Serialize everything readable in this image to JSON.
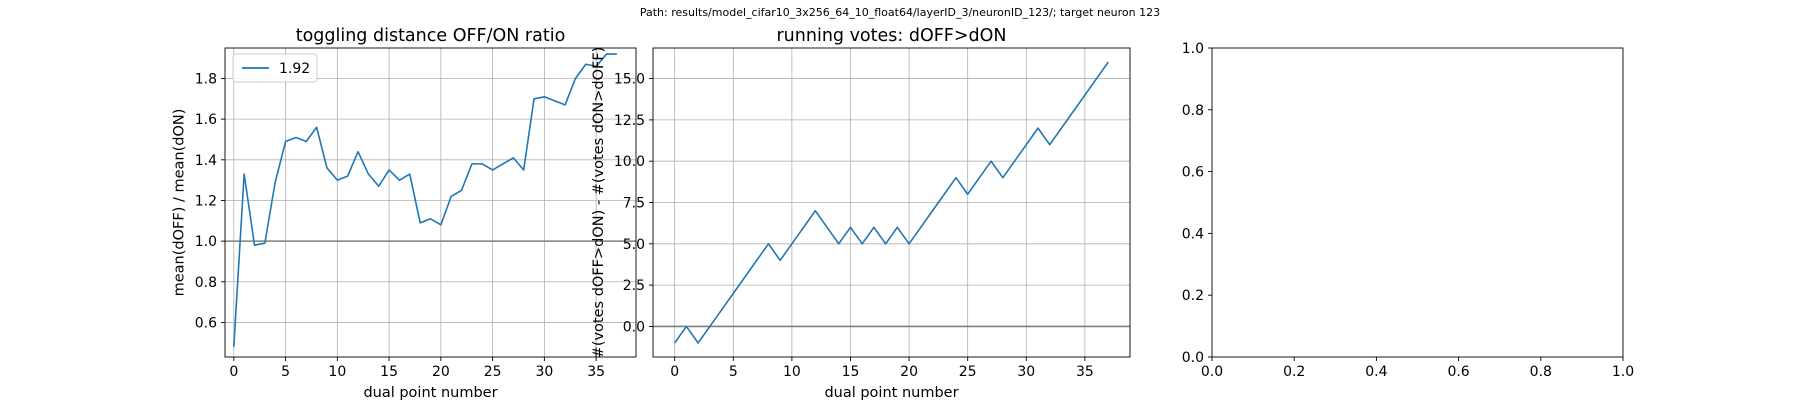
{
  "suptitle": "Path: results/model_cifar10_3x256_64_10_float64/layerID_3/neuronID_123/; target neuron 123",
  "chart_data": [
    {
      "type": "line",
      "title": "toggling distance OFF/ON ratio",
      "xlabel": "dual point number",
      "ylabel": "mean(dOFF) / mean(dON)",
      "xlim": [
        -0.85,
        38.85
      ],
      "ylim": [
        0.43,
        1.95
      ],
      "xticks": [
        0,
        5,
        10,
        15,
        20,
        25,
        30,
        35
      ],
      "xtick_labels": [
        "0",
        "5",
        "10",
        "15",
        "20",
        "25",
        "30",
        "35"
      ],
      "yticks": [
        0.6,
        0.8,
        1.0,
        1.2,
        1.4,
        1.6,
        1.8
      ],
      "ytick_labels": [
        "0.6",
        "0.8",
        "1.0",
        "1.2",
        "1.4",
        "1.6",
        "1.8"
      ],
      "grid": true,
      "legend": "upper-left",
      "hline": 1.0,
      "series": [
        {
          "name": "1.92",
          "color": "#1f77b4",
          "x": [
            0,
            1,
            2,
            3,
            4,
            5,
            6,
            7,
            8,
            9,
            10,
            11,
            12,
            13,
            14,
            15,
            16,
            17,
            18,
            19,
            20,
            21,
            22,
            23,
            24,
            25,
            26,
            27,
            28,
            29,
            30,
            31,
            32,
            33,
            34,
            35,
            36,
            37
          ],
          "y": [
            0.48,
            1.33,
            0.98,
            0.99,
            1.29,
            1.49,
            1.51,
            1.49,
            1.56,
            1.36,
            1.3,
            1.32,
            1.44,
            1.33,
            1.27,
            1.35,
            1.3,
            1.33,
            1.09,
            1.11,
            1.08,
            1.22,
            1.25,
            1.38,
            1.38,
            1.35,
            1.38,
            1.41,
            1.35,
            1.7,
            1.71,
            1.69,
            1.67,
            1.8,
            1.87,
            1.86,
            1.92,
            1.92
          ]
        }
      ]
    },
    {
      "type": "line",
      "title": "running votes: dOFF>dON",
      "xlabel": "dual point number",
      "ylabel": "#(votes dOFF>dON) - #(votes dON>dOFF)",
      "xlim": [
        -1.85,
        38.85
      ],
      "ylim": [
        -1.85,
        16.85
      ],
      "xticks": [
        0,
        5,
        10,
        15,
        20,
        25,
        30,
        35
      ],
      "xtick_labels": [
        "0",
        "5",
        "10",
        "15",
        "20",
        "25",
        "30",
        "35"
      ],
      "yticks": [
        0,
        2.5,
        5,
        7.5,
        10,
        12.5,
        15
      ],
      "ytick_labels": [
        "0.0",
        "2.5",
        "5.0",
        "7.5",
        "10.0",
        "12.5",
        "15.0"
      ],
      "grid": true,
      "hline": 0,
      "series": [
        {
          "color": "#1f77b4",
          "x": [
            0,
            1,
            2,
            3,
            4,
            5,
            6,
            7,
            8,
            9,
            10,
            11,
            12,
            13,
            14,
            15,
            16,
            17,
            18,
            19,
            20,
            21,
            22,
            23,
            24,
            25,
            26,
            27,
            28,
            29,
            30,
            31,
            32,
            33,
            34,
            35,
            36,
            37
          ],
          "y": [
            -1,
            0,
            -1,
            0,
            1,
            2,
            3,
            4,
            5,
            4,
            5,
            6,
            7,
            6,
            5,
            6,
            5,
            6,
            5,
            6,
            5,
            6,
            7,
            8,
            9,
            8,
            9,
            10,
            9,
            10,
            11,
            12,
            11,
            12,
            13,
            14,
            15,
            16
          ]
        }
      ]
    },
    {
      "type": "line",
      "title": "",
      "xlabel": "",
      "ylabel": "",
      "xlim": [
        0,
        1
      ],
      "ylim": [
        0,
        1
      ],
      "xticks": [
        0,
        0.2,
        0.4,
        0.6,
        0.8,
        1.0
      ],
      "xtick_labels": [
        "0.0",
        "0.2",
        "0.4",
        "0.6",
        "0.8",
        "1.0"
      ],
      "yticks": [
        0,
        0.2,
        0.4,
        0.6,
        0.8,
        1.0
      ],
      "ytick_labels": [
        "0.0",
        "0.2",
        "0.4",
        "0.6",
        "0.8",
        "1.0"
      ],
      "grid": false,
      "series": []
    }
  ]
}
